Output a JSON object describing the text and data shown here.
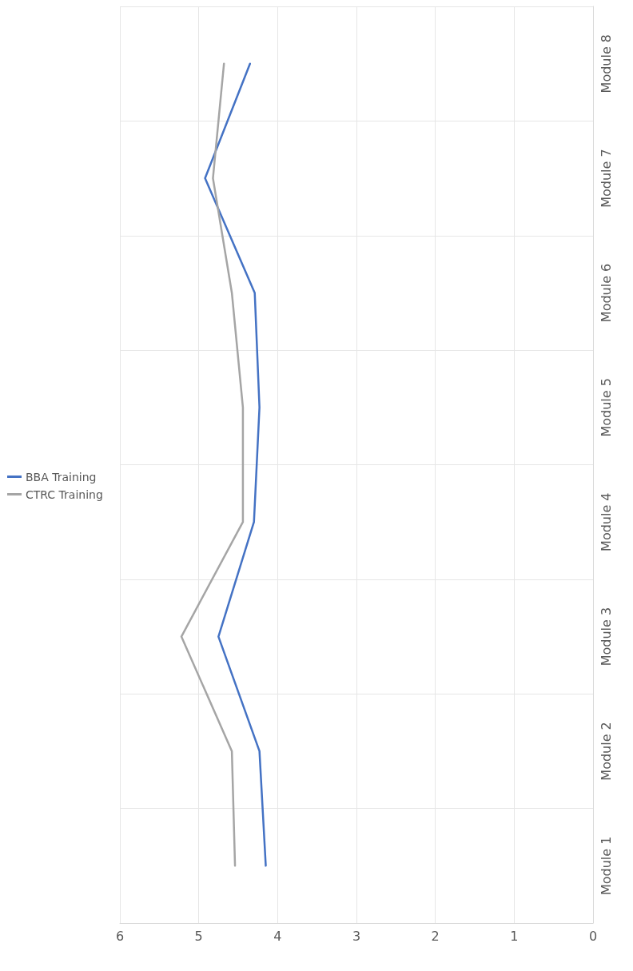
{
  "chart_data": {
    "type": "line",
    "orientation": "horizontal",
    "categories": [
      "Module 8",
      "Module 7",
      "Module 6",
      "Module 5",
      "Module 4",
      "Module 3",
      "Module 2",
      "Module 1"
    ],
    "series": [
      {
        "name": "BBA Training",
        "color": "#4472c4",
        "values": [
          4.35,
          4.92,
          4.29,
          4.23,
          4.3,
          4.75,
          4.23,
          4.15
        ]
      },
      {
        "name": "CTRC Training",
        "color": "#a5a5a5",
        "values": [
          4.68,
          4.82,
          4.58,
          4.44,
          4.44,
          5.22,
          4.58,
          4.54
        ]
      }
    ],
    "xlim": [
      6,
      0
    ],
    "xticks": [
      0,
      1,
      2,
      3,
      4,
      5,
      6
    ],
    "grid": true,
    "legend": "left",
    "marker": "none",
    "line_style": "solid"
  }
}
